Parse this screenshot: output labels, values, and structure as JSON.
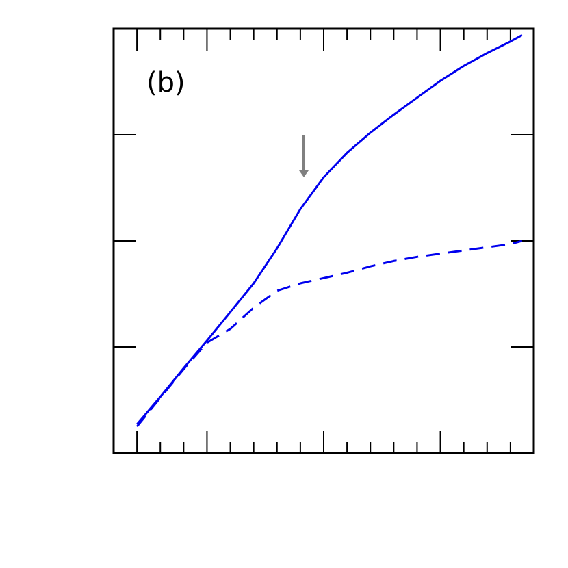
{
  "panel_label": "(b)",
  "chart_data": {
    "type": "line",
    "title": "",
    "xlabel": "",
    "ylabel": "",
    "xlim": [
      0,
      36
    ],
    "ylim": [
      0,
      4
    ],
    "grid": false,
    "x_major_ticks": [
      2,
      8,
      18,
      28,
      36
    ],
    "x_minor_ticks": [
      4,
      6,
      10,
      12,
      14,
      16,
      20,
      22,
      24,
      26,
      30,
      32,
      34
    ],
    "y_major_ticks": [
      1,
      2,
      3
    ],
    "series": [
      {
        "style": "solid",
        "color": "#0000ee",
        "x": [
          2,
          4,
          6,
          8,
          10,
          12,
          14,
          16,
          18,
          20,
          22,
          24,
          26,
          28,
          30,
          32,
          34,
          35
        ],
        "y": [
          0.27,
          0.53,
          0.8,
          1.06,
          1.33,
          1.6,
          1.93,
          2.3,
          2.6,
          2.83,
          3.02,
          3.19,
          3.35,
          3.51,
          3.65,
          3.77,
          3.88,
          3.94
        ]
      },
      {
        "style": "dashed",
        "color": "#0000ee",
        "x": [
          2,
          4,
          6,
          8,
          10,
          12,
          14,
          16,
          18,
          20,
          22,
          24,
          26,
          28,
          30,
          32,
          34,
          35
        ],
        "y": [
          0.25,
          0.52,
          0.79,
          1.04,
          1.17,
          1.37,
          1.53,
          1.6,
          1.65,
          1.7,
          1.76,
          1.81,
          1.85,
          1.88,
          1.91,
          1.94,
          1.97,
          2.0
        ]
      }
    ],
    "annotations": [
      {
        "type": "arrow",
        "direction": "down",
        "color": "#808080",
        "x": 16.3,
        "y_start": 3.0,
        "y_end": 2.6
      }
    ]
  }
}
